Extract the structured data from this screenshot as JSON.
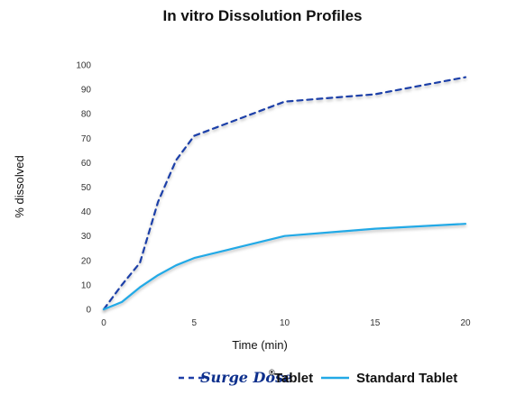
{
  "chart_data": {
    "type": "line",
    "title": "In vitro Dissolution Profiles",
    "xlabel": "Time (min)",
    "ylabel": "% dissolved",
    "xlim": [
      0,
      20
    ],
    "ylim": [
      0,
      100
    ],
    "x_ticks": [
      0,
      5,
      10,
      15,
      20
    ],
    "y_ticks": [
      0,
      10,
      20,
      30,
      40,
      50,
      60,
      70,
      80,
      90,
      100
    ],
    "grid": false,
    "legend_position": "bottom",
    "series": [
      {
        "name": "Tablet",
        "brand": "Surge Dose",
        "brand_mark": "®",
        "style": "dashed",
        "color": "#1f3fa8",
        "x": [
          0,
          1,
          2,
          3,
          4,
          5,
          10,
          15,
          20
        ],
        "y": [
          0,
          10,
          19,
          44,
          61,
          71,
          85,
          88,
          95
        ]
      },
      {
        "name": "Standard Tablet",
        "style": "solid",
        "color": "#22a9e6",
        "x": [
          0,
          1,
          2,
          3,
          4,
          5,
          10,
          15,
          20
        ],
        "y": [
          0,
          3,
          9,
          14,
          18,
          21,
          30,
          33,
          35
        ]
      }
    ]
  }
}
